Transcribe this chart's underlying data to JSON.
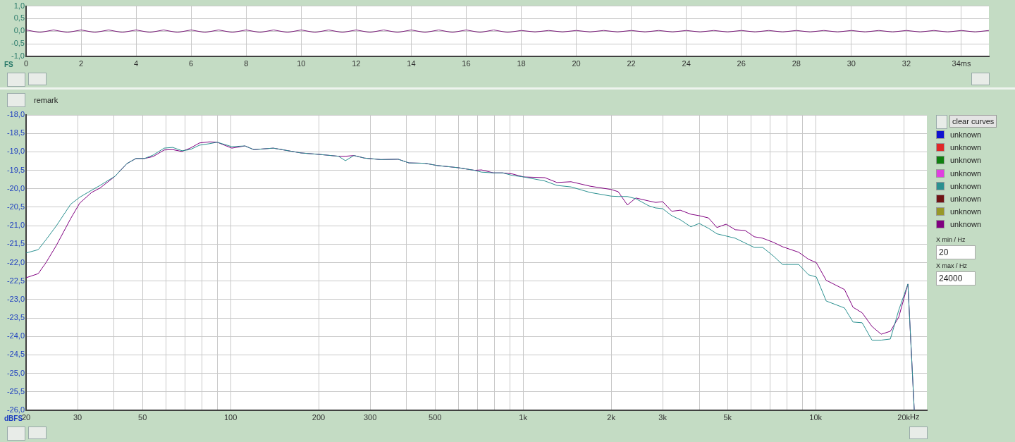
{
  "chart_data": [
    {
      "type": "line",
      "ylabel": "FS",
      "x": [
        0,
        0.5,
        1,
        1.5,
        2,
        2.5,
        3,
        3.5,
        4,
        4.5,
        5,
        5.5,
        6,
        6.5,
        7,
        7.5,
        8,
        8.5,
        9,
        9.5,
        10,
        10.5,
        11,
        11.5,
        12,
        12.5,
        13,
        13.5,
        14,
        14.5,
        15,
        15.5,
        16,
        16.5,
        17,
        17.5,
        18,
        18.5,
        19,
        19.5,
        20,
        20.5,
        21,
        21.5,
        22,
        22.5,
        23,
        23.5,
        24,
        24.5,
        25,
        25.5,
        26,
        26.5,
        27,
        27.5,
        28,
        28.5,
        29,
        29.5,
        30,
        30.5,
        31,
        31.5,
        32,
        32.5,
        33,
        33.5,
        34,
        34.5,
        35
      ],
      "xlim": [
        0,
        35
      ],
      "xticks": [
        0,
        2,
        4,
        6,
        8,
        10,
        12,
        14,
        16,
        18,
        20,
        22,
        24,
        26,
        28,
        30,
        32,
        {
          "value": 34,
          "label": "34ms"
        }
      ],
      "ylim": [
        -1,
        1
      ],
      "yticks": [
        {
          "value": -1,
          "label": "-1,0"
        },
        {
          "value": -0.5,
          "label": "-0,5"
        },
        {
          "value": 0,
          "label": "0,0"
        },
        {
          "value": 0.5,
          "label": "0,5"
        },
        {
          "value": 1,
          "label": "1,0"
        }
      ],
      "grid": true,
      "series": [
        {
          "color": "#7a1a7a",
          "values": [
            0.05,
            -0.05,
            0.05,
            -0.05,
            0.05,
            -0.05,
            0.05,
            -0.05,
            0.05,
            -0.05,
            0.05,
            -0.05,
            0.05,
            -0.05,
            0.05,
            -0.05,
            0.05,
            -0.05,
            0.05,
            -0.05,
            0.05,
            -0.05,
            0.05,
            -0.05,
            0.05,
            -0.05,
            0.05,
            -0.05,
            0.05,
            -0.05,
            0.05,
            -0.05,
            0.05,
            -0.05,
            0.05,
            -0.05,
            0.03,
            -0.03,
            0.03,
            -0.03,
            0.03,
            -0.03,
            0.03,
            -0.03,
            0.03,
            -0.03,
            0.03,
            -0.03,
            0.03,
            -0.03,
            0.03,
            -0.03,
            0.03,
            -0.03,
            0.03,
            -0.03,
            0.03,
            -0.03,
            0.03,
            -0.03,
            0.03,
            -0.03,
            0.03,
            -0.03,
            0.03,
            -0.03,
            0.03,
            -0.03,
            0.03,
            -0.03,
            0.03
          ]
        }
      ]
    },
    {
      "type": "line",
      "ylabel": "dBFS",
      "log": "x",
      "legend": "right",
      "annotations": [
        "remark",
        "clear curves",
        "X min / Hz",
        "20",
        "X max / Hz",
        "24000",
        "Hz"
      ],
      "x": [
        20,
        22,
        23.4,
        25.4,
        28.4,
        30.5,
        33.5,
        35.8,
        40.3,
        44.2,
        47.5,
        50.8,
        54.3,
        59.3,
        63.4,
        68.2,
        72.8,
        78.3,
        84.6,
        90,
        101,
        112,
        120,
        140,
        174,
        201,
        234,
        247,
        264,
        287,
        326,
        374,
        407,
        462,
        508,
        600,
        682,
        721,
        792,
        851,
        920,
        1005,
        1187,
        1305,
        1458,
        1693,
        2000,
        2114,
        2272,
        2429,
        2685,
        2837,
        3000,
        3222,
        3445,
        3744,
        4001,
        4300,
        4596,
        4942,
        5310,
        5740,
        6170,
        6593,
        7165,
        7700,
        8750,
        9455,
        10050,
        10866,
        12550,
        13420,
        14420,
        15580,
        16750,
        18000,
        19230,
        20670,
        21730
      ],
      "xlim": [
        20,
        24000
      ],
      "xticks": [
        20,
        30,
        {
          "value": 40,
          "label": null
        },
        50,
        {
          "value": 60,
          "label": null
        },
        {
          "value": 70,
          "label": null
        },
        {
          "value": 80,
          "label": null
        },
        {
          "value": 90,
          "label": null
        },
        100,
        200,
        300,
        {
          "value": 400,
          "label": null
        },
        500,
        {
          "value": 600,
          "label": null
        },
        {
          "value": 700,
          "label": null
        },
        {
          "value": 800,
          "label": null
        },
        {
          "value": 900,
          "label": null
        },
        {
          "value": 1000,
          "label": "1k"
        },
        {
          "value": 2000,
          "label": "2k"
        },
        {
          "value": 3000,
          "label": "3k"
        },
        {
          "value": 4000,
          "label": null
        },
        {
          "value": 5000,
          "label": "5k"
        },
        {
          "value": 6000,
          "label": null
        },
        {
          "value": 7000,
          "label": null
        },
        {
          "value": 8000,
          "label": null
        },
        {
          "value": 9000,
          "label": null
        },
        {
          "value": 10000,
          "label": "10k"
        },
        {
          "value": 20000,
          "label": "20k"
        }
      ],
      "ylim": [
        -26,
        -18
      ],
      "yticks": [
        {
          "value": -26,
          "label": "-26,0"
        },
        {
          "value": -25.5,
          "label": "-25,5"
        },
        {
          "value": -25,
          "label": "-25,0"
        },
        {
          "value": -24.5,
          "label": "-24,5"
        },
        {
          "value": -24,
          "label": "-24,0"
        },
        {
          "value": -23.5,
          "label": "-23,5"
        },
        {
          "value": -23,
          "label": "-23,0"
        },
        {
          "value": -22.5,
          "label": "-22,5"
        },
        {
          "value": -22,
          "label": "-22,0"
        },
        {
          "value": -21.5,
          "label": "-21,5"
        },
        {
          "value": -21,
          "label": "-21,0"
        },
        {
          "value": -20.5,
          "label": "-20,5"
        },
        {
          "value": -20,
          "label": "-20,0"
        },
        {
          "value": -19.5,
          "label": "-19,5"
        },
        {
          "value": -19,
          "label": "-19,0"
        },
        {
          "value": -18.5,
          "label": "-18,5"
        },
        {
          "value": -18,
          "label": "-18,0"
        }
      ],
      "grid": true,
      "series": [
        {
          "name": "unknown",
          "color": "#1010d0",
          "values": [
            null,
            null,
            null,
            null,
            null,
            null,
            null,
            null,
            null,
            null,
            null,
            null,
            null,
            null,
            null,
            null,
            null,
            null,
            null,
            null,
            null,
            null,
            null,
            null,
            null,
            null,
            null,
            null,
            null,
            null,
            null,
            null,
            null,
            null,
            null,
            null,
            null,
            null,
            null,
            null,
            null,
            null,
            null,
            null,
            null,
            null,
            null,
            null,
            null,
            null,
            null,
            null,
            null,
            null,
            null,
            null,
            null,
            null,
            null,
            null,
            null,
            null,
            null,
            null,
            null,
            null,
            null,
            null,
            null,
            null,
            null,
            null,
            null,
            null,
            null,
            null,
            null,
            null,
            null
          ]
        },
        {
          "name": "unknown",
          "color": "#e02828",
          "values": [
            null,
            null,
            null,
            null,
            null,
            null,
            null,
            null,
            null,
            null,
            null,
            null,
            null,
            null,
            null,
            null,
            null,
            null,
            null,
            null,
            null,
            null,
            null,
            null,
            null,
            null,
            null,
            null,
            null,
            null,
            null,
            null,
            null,
            null,
            null,
            null,
            null,
            null,
            null,
            null,
            null,
            null,
            null,
            null,
            null,
            null,
            null,
            null,
            null,
            null,
            null,
            null,
            null,
            null,
            null,
            null,
            null,
            null,
            null,
            null,
            null,
            null,
            null,
            null,
            null,
            null,
            null,
            null,
            null,
            null,
            null,
            null,
            null,
            null,
            null,
            null,
            null,
            null,
            null
          ]
        },
        {
          "name": "unknown",
          "color": "#108010",
          "values": [
            null,
            null,
            null,
            null,
            null,
            null,
            null,
            null,
            null,
            null,
            null,
            null,
            null,
            null,
            null,
            null,
            null,
            null,
            null,
            null,
            null,
            null,
            null,
            null,
            null,
            null,
            null,
            null,
            null,
            null,
            null,
            null,
            null,
            null,
            null,
            null,
            null,
            null,
            null,
            null,
            null,
            null,
            null,
            null,
            null,
            null,
            null,
            null,
            null,
            null,
            null,
            null,
            null,
            null,
            null,
            null,
            null,
            null,
            null,
            null,
            null,
            null,
            null,
            null,
            null,
            null,
            null,
            null,
            null,
            null,
            null,
            null,
            null,
            null,
            null,
            null,
            null,
            null,
            null
          ]
        },
        {
          "name": "unknown",
          "color": "#e040e0",
          "values": [
            null,
            null,
            null,
            null,
            null,
            null,
            null,
            null,
            null,
            null,
            null,
            null,
            null,
            null,
            null,
            null,
            null,
            null,
            null,
            null,
            null,
            null,
            null,
            null,
            null,
            null,
            null,
            null,
            null,
            null,
            null,
            null,
            null,
            null,
            null,
            null,
            null,
            null,
            null,
            null,
            null,
            null,
            null,
            null,
            null,
            null,
            null,
            null,
            null,
            null,
            null,
            null,
            null,
            null,
            null,
            null,
            null,
            null,
            null,
            null,
            null,
            null,
            null,
            null,
            null,
            null,
            null,
            null,
            null,
            null,
            null,
            null,
            null,
            null,
            null,
            null,
            null,
            null,
            null
          ]
        },
        {
          "name": "unknown",
          "color": "#2a9090",
          "values": [
            -21.74,
            -21.65,
            -21.38,
            -21.0,
            -20.42,
            -20.23,
            -20.04,
            -19.91,
            -19.66,
            -19.32,
            -19.18,
            -19.18,
            -19.09,
            -18.9,
            -18.88,
            -18.97,
            -18.94,
            -18.82,
            -18.78,
            -18.74,
            -18.86,
            -18.84,
            -18.94,
            -18.9,
            -19.03,
            -19.07,
            -19.12,
            -19.24,
            -19.1,
            -19.17,
            -19.21,
            -19.2,
            -19.3,
            -19.31,
            -19.37,
            -19.43,
            -19.5,
            -19.55,
            -19.57,
            -19.57,
            -19.64,
            -19.68,
            -19.79,
            -19.91,
            -19.95,
            -20.1,
            -20.2,
            -20.21,
            -20.21,
            -20.27,
            -20.46,
            -20.52,
            -20.54,
            -20.73,
            -20.84,
            -21.03,
            -20.94,
            -21.07,
            -21.22,
            -21.28,
            -21.34,
            -21.47,
            -21.59,
            -21.59,
            -21.82,
            -22.05,
            -22.05,
            -22.33,
            -22.39,
            -23.04,
            -23.23,
            -23.61,
            -23.63,
            -24.1,
            -24.1,
            -24.07,
            -23.29,
            -22.58,
            -26
          ]
        },
        {
          "name": "unknown",
          "color": "#701414",
          "values": [
            null,
            null,
            null,
            null,
            null,
            null,
            null,
            null,
            null,
            null,
            null,
            null,
            null,
            null,
            null,
            null,
            null,
            null,
            null,
            null,
            null,
            null,
            null,
            null,
            null,
            null,
            null,
            null,
            null,
            null,
            null,
            null,
            null,
            null,
            null,
            null,
            null,
            null,
            null,
            null,
            null,
            null,
            null,
            null,
            null,
            null,
            null,
            null,
            null,
            null,
            null,
            null,
            null,
            null,
            null,
            null,
            null,
            null,
            null,
            null,
            null,
            null,
            null,
            null,
            null,
            null,
            null,
            null,
            null,
            null,
            null,
            null,
            null,
            null,
            null,
            null,
            null,
            null,
            null
          ]
        },
        {
          "name": "unknown",
          "color": "#989828",
          "values": [
            null,
            null,
            null,
            null,
            null,
            null,
            null,
            null,
            null,
            null,
            null,
            null,
            null,
            null,
            null,
            null,
            null,
            null,
            null,
            null,
            null,
            null,
            null,
            null,
            null,
            null,
            null,
            null,
            null,
            null,
            null,
            null,
            null,
            null,
            null,
            null,
            null,
            null,
            null,
            null,
            null,
            null,
            null,
            null,
            null,
            null,
            null,
            null,
            null,
            null,
            null,
            null,
            null,
            null,
            null,
            null,
            null,
            null,
            null,
            null,
            null,
            null,
            null,
            null,
            null,
            null,
            null,
            null,
            null,
            null,
            null,
            null,
            null,
            null,
            null,
            null,
            null,
            null,
            null
          ]
        },
        {
          "name": "unknown",
          "color": "#800080",
          "values": [
            -22.41,
            -22.3,
            -22.0,
            -21.53,
            -20.81,
            -20.39,
            -20.1,
            -19.98,
            -19.66,
            -19.32,
            -19.18,
            -19.18,
            -19.13,
            -18.95,
            -18.94,
            -18.99,
            -18.9,
            -18.76,
            -18.73,
            -18.74,
            -18.9,
            -18.84,
            -18.94,
            -18.9,
            -19.03,
            -19.07,
            -19.12,
            -19.12,
            -19.1,
            -19.17,
            -19.21,
            -19.2,
            -19.3,
            -19.31,
            -19.37,
            -19.43,
            -19.5,
            -19.49,
            -19.57,
            -19.57,
            -19.6,
            -19.68,
            -19.7,
            -19.83,
            -19.81,
            -19.93,
            -20.02,
            -20.08,
            -20.44,
            -20.25,
            -20.33,
            -20.37,
            -20.35,
            -20.61,
            -20.58,
            -20.69,
            -20.73,
            -20.79,
            -21.05,
            -20.96,
            -21.11,
            -21.13,
            -21.3,
            -21.34,
            -21.45,
            -21.57,
            -21.72,
            -21.91,
            -22.0,
            -22.48,
            -22.73,
            -23.21,
            -23.36,
            -23.73,
            -23.94,
            -23.86,
            -23.48,
            -22.58,
            -26
          ]
        }
      ]
    }
  ]
}
